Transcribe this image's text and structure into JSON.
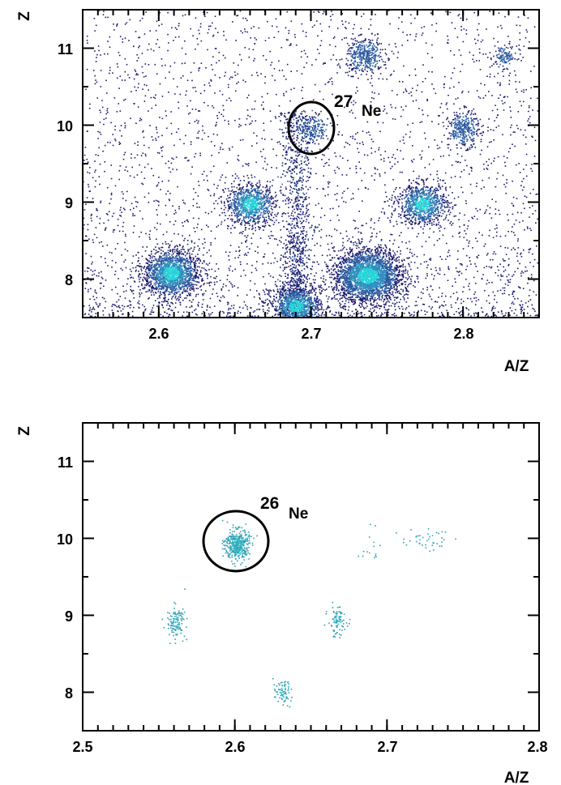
{
  "chart_data": [
    {
      "type": "heatmap",
      "title": "",
      "xlabel": "A/Z",
      "ylabel": "Z",
      "xlim": [
        2.55,
        2.85
      ],
      "ylim": [
        7.5,
        11.5
      ],
      "x_ticks": [
        2.6,
        2.7,
        2.8
      ],
      "x_tick_labels": [
        "2.6",
        "2.7",
        "2.8"
      ],
      "y_ticks": [
        8,
        9,
        10,
        11
      ],
      "y_tick_labels": [
        "8",
        "9",
        "10",
        "11"
      ],
      "colormap": [
        "#1a1a6e",
        "#2a5aa0",
        "#2f8fbf",
        "#26d4d8"
      ],
      "background_density": 0.28,
      "clusters": [
        {
          "x": 2.735,
          "y": 10.9,
          "count": 380,
          "sx": 0.006,
          "sy": 0.11
        },
        {
          "x": 2.827,
          "y": 10.9,
          "count": 120,
          "sx": 0.004,
          "sy": 0.07
        },
        {
          "x": 2.7,
          "y": 9.95,
          "count": 200,
          "sx": 0.006,
          "sy": 0.1
        },
        {
          "x": 2.8,
          "y": 9.95,
          "count": 320,
          "sx": 0.005,
          "sy": 0.11
        },
        {
          "x": 2.66,
          "y": 8.98,
          "count": 900,
          "sx": 0.008,
          "sy": 0.13
        },
        {
          "x": 2.773,
          "y": 8.98,
          "count": 900,
          "sx": 0.008,
          "sy": 0.13
        },
        {
          "x": 2.608,
          "y": 8.08,
          "count": 1600,
          "sx": 0.009,
          "sy": 0.15
        },
        {
          "x": 2.737,
          "y": 8.05,
          "count": 2600,
          "sx": 0.011,
          "sy": 0.17
        },
        {
          "x": 2.69,
          "y": 7.65,
          "count": 1000,
          "sx": 0.008,
          "sy": 0.13
        }
      ],
      "streak": {
        "x": 2.69,
        "y_from": 7.5,
        "y_to": 10.2,
        "count": 1000,
        "sx": 0.005
      },
      "annotation": {
        "mass": "27",
        "element": "Ne",
        "x": 2.7,
        "y": 9.95,
        "rx": 0.015,
        "ry": 0.34
      }
    },
    {
      "type": "heatmap",
      "title": "",
      "xlabel": "A/Z",
      "ylabel": "Z",
      "xlim": [
        2.5,
        2.8
      ],
      "ylim": [
        7.5,
        11.5
      ],
      "x_ticks": [
        2.5,
        2.6,
        2.7,
        2.8
      ],
      "x_tick_labels": [
        "2.5",
        "2.6",
        "2.7",
        "2.8"
      ],
      "y_ticks": [
        8,
        9,
        10,
        11
      ],
      "y_tick_labels": [
        "8",
        "9",
        "10",
        "11"
      ],
      "colormap": [
        "#2f9fb4",
        "#2fb0bf"
      ],
      "background_density": 0.0,
      "clusters": [
        {
          "x": 2.601,
          "y": 9.92,
          "count": 380,
          "sx": 0.004,
          "sy": 0.1
        },
        {
          "x": 2.561,
          "y": 8.92,
          "count": 120,
          "sx": 0.003,
          "sy": 0.1
        },
        {
          "x": 2.667,
          "y": 8.92,
          "count": 90,
          "sx": 0.003,
          "sy": 0.1
        },
        {
          "x": 2.631,
          "y": 8.0,
          "count": 70,
          "sx": 0.003,
          "sy": 0.08
        },
        {
          "x": 2.725,
          "y": 10.0,
          "count": 40,
          "sx": 0.008,
          "sy": 0.07
        },
        {
          "x": 2.69,
          "y": 9.88,
          "count": 15,
          "sx": 0.005,
          "sy": 0.12
        }
      ],
      "annotation": {
        "mass": "26",
        "element": "Ne",
        "x": 2.601,
        "y": 9.92,
        "rx": 0.021,
        "ry": 0.38
      }
    }
  ]
}
